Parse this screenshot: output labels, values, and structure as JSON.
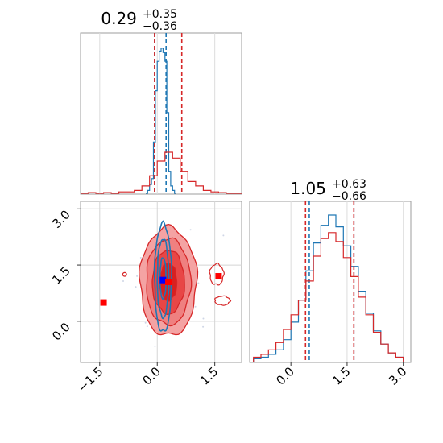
{
  "chart_data": [
    {
      "type": "histogram",
      "panel": "top-left",
      "title_main": "0.29",
      "title_sup": "+0.35",
      "title_sub": "−0.36",
      "xlim": [
        -2.0,
        2.2
      ],
      "grid": true,
      "series": [
        {
          "color": "#1f77b4",
          "bins": [
            -0.3,
            -0.25,
            -0.2,
            -0.15,
            -0.1,
            -0.05,
            0.0,
            0.05,
            0.1,
            0.15,
            0.2,
            0.25,
            0.3,
            0.35,
            0.4,
            0.45,
            0.5
          ],
          "values": [
            0,
            0.02,
            0.06,
            0.1,
            0.35,
            0.7,
            0.9,
            0.97,
            0.99,
            0.96,
            0.9,
            0.55,
            0.15,
            0.05,
            0.02,
            0.0
          ],
          "quantiles": [
            -0.07,
            0.23
          ]
        },
        {
          "color": "#d62728",
          "bins": [
            -2.0,
            -1.8,
            -1.6,
            -1.4,
            -1.2,
            -1.0,
            -0.8,
            -0.6,
            -0.4,
            -0.2,
            0.0,
            0.2,
            0.4,
            0.6,
            0.8,
            1.0,
            1.2,
            1.4,
            1.6,
            1.8,
            2.0,
            2.2
          ],
          "values": [
            0.0,
            0.005,
            0.0,
            0.005,
            0.0,
            0.01,
            0.01,
            0.02,
            0.05,
            0.12,
            0.22,
            0.28,
            0.24,
            0.15,
            0.08,
            0.05,
            0.02,
            0.01,
            0.005,
            0.0,
            0.0
          ],
          "quantiles": [
            -0.07,
            0.64
          ]
        }
      ]
    },
    {
      "type": "contour",
      "panel": "bottom-left",
      "xlim": [
        -2.0,
        2.2
      ],
      "ylim": [
        -1.1,
        3.2
      ],
      "xticks": [
        "−1.5",
        "0.0",
        "1.5"
      ],
      "yticks": [
        "0.0",
        "1.5",
        "3.0"
      ],
      "red_fill_levels": [
        "#f4a3a3",
        "#ef8080",
        "#e84646",
        "#d92020"
      ],
      "blue_line_color": "#1f77b4",
      "markers": [
        {
          "x": 0.15,
          "y": 1.1,
          "color": "#0000ff"
        },
        {
          "x": 0.29,
          "y": 1.05,
          "color": "#ff0000"
        },
        {
          "x": -1.4,
          "y": 0.5,
          "color": "#ff0000"
        },
        {
          "x": 1.6,
          "y": 1.2,
          "color": "#ff0000"
        }
      ]
    },
    {
      "type": "histogram",
      "panel": "bottom-right",
      "title_main": "1.05",
      "title_sup": "+0.63",
      "title_sub": "−0.66",
      "xlim": [
        -1.1,
        3.2
      ],
      "xticks": [
        "0.0",
        "1.5",
        "3.0"
      ],
      "grid": true,
      "series": [
        {
          "color": "#1f77b4",
          "bins": [
            -1.0,
            -0.8,
            -0.6,
            -0.4,
            -0.2,
            0.0,
            0.2,
            0.4,
            0.6,
            0.8,
            1.0,
            1.2,
            1.4,
            1.6,
            1.8,
            2.0,
            2.2,
            2.4,
            2.6,
            2.8,
            3.0
          ],
          "values": [
            0.02,
            0.03,
            0.05,
            0.08,
            0.15,
            0.27,
            0.42,
            0.62,
            0.81,
            0.93,
            1.0,
            0.92,
            0.79,
            0.65,
            0.48,
            0.33,
            0.21,
            0.12,
            0.06,
            0.03
          ],
          "quantiles": [
            0.49,
            1.68
          ]
        },
        {
          "color": "#d62728",
          "bins": [
            -1.0,
            -0.8,
            -0.6,
            -0.4,
            -0.2,
            0.0,
            0.2,
            0.4,
            0.6,
            0.8,
            1.0,
            1.2,
            1.4,
            1.6,
            1.8,
            2.0,
            2.2,
            2.4,
            2.6,
            2.8,
            3.0
          ],
          "values": [
            0.03,
            0.05,
            0.08,
            0.13,
            0.22,
            0.32,
            0.42,
            0.55,
            0.72,
            0.84,
            0.88,
            0.82,
            0.71,
            0.58,
            0.44,
            0.32,
            0.2,
            0.12,
            0.06,
            0.03
          ],
          "quantiles": [
            0.39,
            1.68
          ]
        }
      ]
    }
  ]
}
